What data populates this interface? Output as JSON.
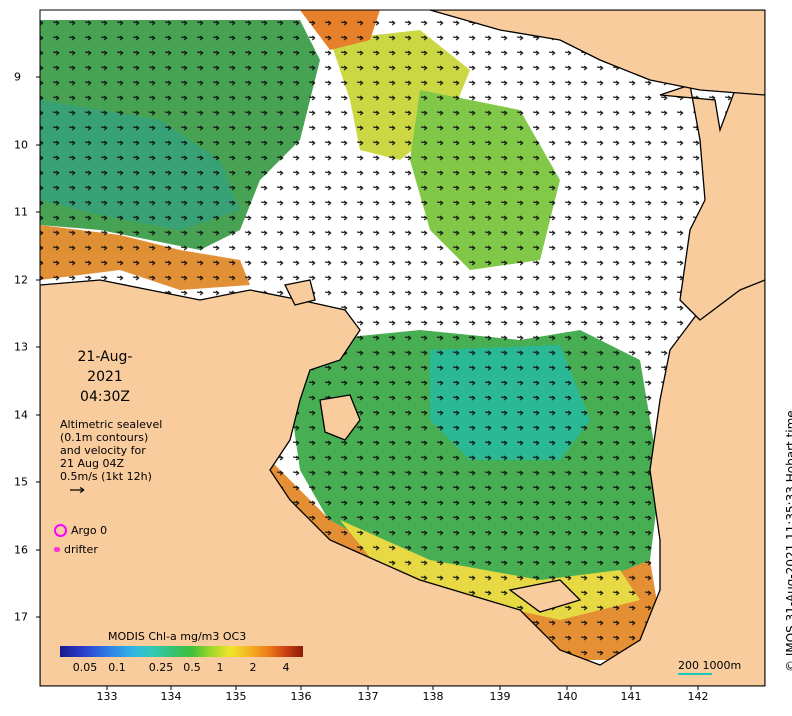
{
  "date_line1": "21-Aug-2021",
  "date_line2": "04:30Z",
  "info_lines": [
    "Altimetric sealevel",
    "(0.1m contours)",
    "and velocity for",
    "21 Aug 04Z",
    "0.5m/s (1kt 12h)"
  ],
  "legend": {
    "argo": "Argo 0",
    "drifter": "drifter"
  },
  "colorbar": {
    "title": "MODIS Chl-a mg/m3 OC3",
    "ticks": [
      "0.05",
      "0.1",
      "0.25",
      "0.5",
      "1",
      "2",
      "4"
    ]
  },
  "scale_label": "200  1000m",
  "credit": "© IMOS 31-Aug-2021 11:35:33 Hobart time",
  "x_ticks": [
    "133",
    "134",
    "135",
    "136",
    "137",
    "138",
    "139",
    "140",
    "141",
    "142"
  ],
  "y_ticks": [
    "9",
    "10",
    "11",
    "12",
    "13",
    "14",
    "15",
    "16",
    "17"
  ],
  "colors": {
    "land": "#f9cc9e",
    "argo": "#ff00ff",
    "drifter": "#ff33cc",
    "scale_bar": "#17c9b8"
  }
}
